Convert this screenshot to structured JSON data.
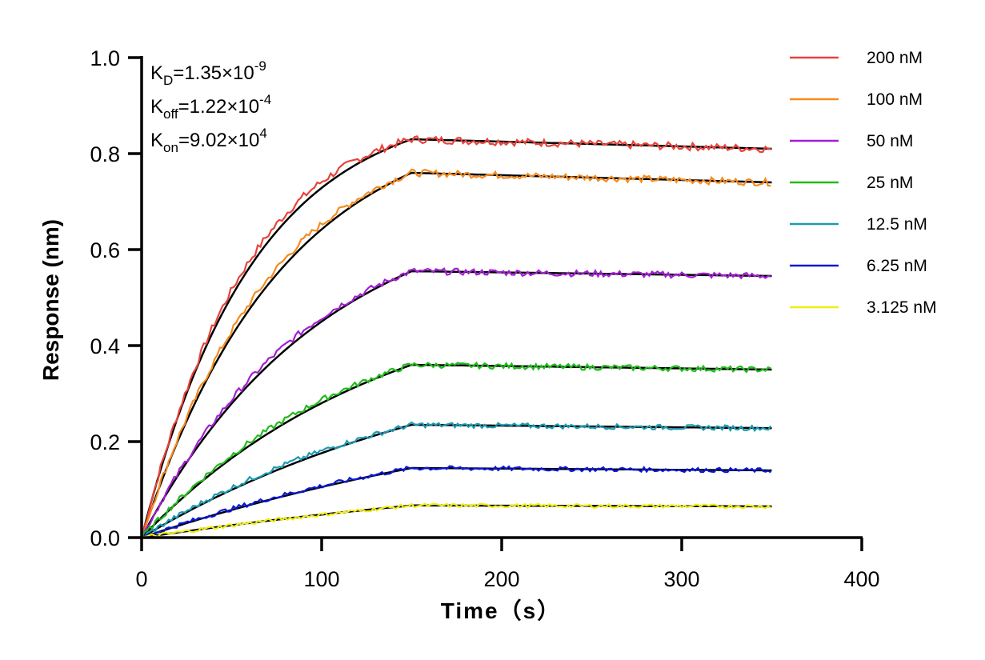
{
  "chart_data": {
    "type": "line",
    "xlabel": "Time（s）",
    "ylabel": "Response (nm)",
    "xlim": [
      0,
      400
    ],
    "ylim": [
      0,
      1.0
    ],
    "x_ticks": [
      "0",
      "100",
      "200",
      "300",
      "400"
    ],
    "y_ticks": [
      "0.0",
      "0.2",
      "0.4",
      "0.6",
      "0.8",
      "1.0"
    ],
    "grid": false,
    "legend_position": "right",
    "annotations": {
      "kd": {
        "base": "K",
        "sub": "D",
        "value": "=1.35×10",
        "exp": "-9"
      },
      "koff": {
        "base": "K",
        "sub": "off",
        "value": "=1.22×10",
        "exp": "-4"
      },
      "kon": {
        "base": "K",
        "sub": "on",
        "value": "=9.02×10",
        "exp": "4"
      }
    },
    "association_end_s": 150,
    "end_s": 350,
    "series": [
      {
        "name": "200 nM",
        "color": "#e8433b",
        "plateau": 0.83,
        "end": 0.81
      },
      {
        "name": "100 nM",
        "color": "#f68b1f",
        "plateau": 0.76,
        "end": 0.74
      },
      {
        "name": "50 nM",
        "color": "#a21fd2",
        "plateau": 0.555,
        "end": 0.545
      },
      {
        "name": "25 nM",
        "color": "#22bb1d",
        "plateau": 0.36,
        "end": 0.35
      },
      {
        "name": "12.5 nM",
        "color": "#1c9bb1",
        "plateau": 0.235,
        "end": 0.228
      },
      {
        "name": "6.25 nM",
        "color": "#0a18d6",
        "plateau": 0.145,
        "end": 0.14
      },
      {
        "name": "3.125 nM",
        "color": "#f2ee14",
        "plateau": 0.067,
        "end": 0.065
      }
    ]
  }
}
